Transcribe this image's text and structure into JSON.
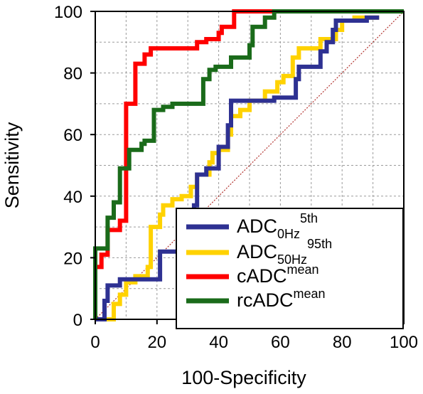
{
  "chart_data": {
    "type": "line",
    "xlabel": "100-Specificity",
    "ylabel": "Sensitivity",
    "xlim": [
      0,
      100
    ],
    "ylim": [
      0,
      100
    ],
    "grid": true,
    "legend_position": "bottom-right",
    "x_ticks": [
      "0",
      "20",
      "40",
      "60",
      "80",
      "100"
    ],
    "y_ticks": [
      "0",
      "20",
      "40",
      "60",
      "80",
      "100"
    ],
    "reference_line": {
      "from": [
        0,
        0
      ],
      "to": [
        100,
        100
      ],
      "color": "#b2322e"
    },
    "series": [
      {
        "name": "ADC0Hz5th",
        "legend": {
          "base": "ADC",
          "sub": "0Hz",
          "sup": "5th"
        },
        "color": "#2e3192",
        "x": [
          0,
          3,
          3,
          4,
          4,
          8,
          8,
          12,
          12,
          21,
          21,
          23,
          23,
          29,
          29,
          32,
          32,
          33,
          33,
          36,
          36,
          40,
          40,
          43,
          43,
          44,
          44,
          51,
          51,
          58,
          58,
          62,
          62,
          65,
          65,
          66,
          66,
          73,
          73,
          75,
          75,
          77,
          77,
          78,
          78,
          84,
          84,
          88,
          88,
          92
        ],
        "y": [
          0,
          0,
          6,
          6,
          11,
          11,
          13,
          13,
          13,
          13,
          22,
          22,
          22,
          22,
          34,
          34,
          37,
          37,
          47,
          47,
          49,
          49,
          56,
          56,
          63,
          63,
          71,
          71,
          71,
          71,
          72,
          72,
          72,
          72,
          78,
          78,
          82,
          82,
          87,
          87,
          90,
          90,
          94,
          94,
          97,
          97,
          97,
          97,
          98,
          98
        ]
      },
      {
        "name": "ADC50Hz95th",
        "legend": {
          "base": "ADC",
          "sub": "50Hz",
          "sup": "95th"
        },
        "color": "#ffd200",
        "x": [
          0,
          2,
          2,
          6,
          6,
          8,
          8,
          10,
          10,
          13,
          13,
          17,
          17,
          18,
          18,
          21,
          21,
          22,
          22,
          25,
          25,
          28,
          28,
          31,
          31,
          33,
          33,
          36,
          36,
          37,
          37,
          38,
          38,
          40,
          40,
          43,
          43,
          44,
          44,
          47,
          47,
          50,
          50,
          55,
          55,
          59,
          59,
          61,
          61,
          64,
          64,
          66,
          66,
          69,
          69,
          73,
          73,
          78,
          78,
          80,
          80,
          84,
          84,
          88,
          88,
          92
        ],
        "y": [
          0,
          0,
          0,
          0,
          5,
          5,
          8,
          8,
          12,
          12,
          14,
          14,
          17,
          17,
          30,
          30,
          34,
          34,
          37,
          37,
          39,
          39,
          40,
          40,
          43,
          43,
          47,
          47,
          47,
          47,
          51,
          51,
          54,
          54,
          55,
          55,
          60,
          60,
          66,
          66,
          68,
          68,
          71,
          71,
          74,
          74,
          77,
          77,
          79,
          79,
          85,
          85,
          88,
          88,
          88,
          88,
          91,
          91,
          94,
          94,
          97,
          97,
          98,
          98,
          98,
          98
        ]
      },
      {
        "name": "cADCmean",
        "legend": {
          "base": "cADC",
          "sub": "",
          "sup": "mean"
        },
        "color": "#ff0000",
        "x": [
          0,
          0,
          2,
          2,
          4,
          4,
          8,
          8,
          10,
          10,
          13,
          13,
          16,
          16,
          18,
          18,
          33,
          33,
          36,
          36,
          40,
          40,
          41,
          41,
          45,
          45,
          60
        ],
        "y": [
          0,
          17,
          17,
          21,
          21,
          29,
          29,
          32,
          32,
          70,
          70,
          83,
          83,
          86,
          86,
          88,
          88,
          90,
          90,
          91,
          91,
          93,
          93,
          95,
          95,
          100,
          100
        ]
      },
      {
        "name": "rcADCmean",
        "legend": {
          "base": "rcADC",
          "sub": "",
          "sup": "mean"
        },
        "color": "#1a6b1a",
        "x": [
          0,
          0,
          1,
          1,
          4,
          4,
          6,
          6,
          8,
          8,
          11,
          11,
          15,
          15,
          16,
          16,
          19,
          19,
          22,
          22,
          25,
          25,
          35,
          35,
          37,
          37,
          39,
          39,
          44,
          44,
          50,
          50,
          51,
          51,
          55,
          55,
          58,
          58,
          100
        ],
        "y": [
          0,
          23,
          23,
          23,
          23,
          33,
          33,
          38,
          38,
          49,
          49,
          55,
          55,
          57,
          57,
          58,
          58,
          68,
          68,
          69,
          69,
          70,
          70,
          78,
          78,
          81,
          81,
          82,
          82,
          85,
          85,
          89,
          89,
          95,
          95,
          98,
          98,
          100,
          100
        ]
      }
    ]
  }
}
